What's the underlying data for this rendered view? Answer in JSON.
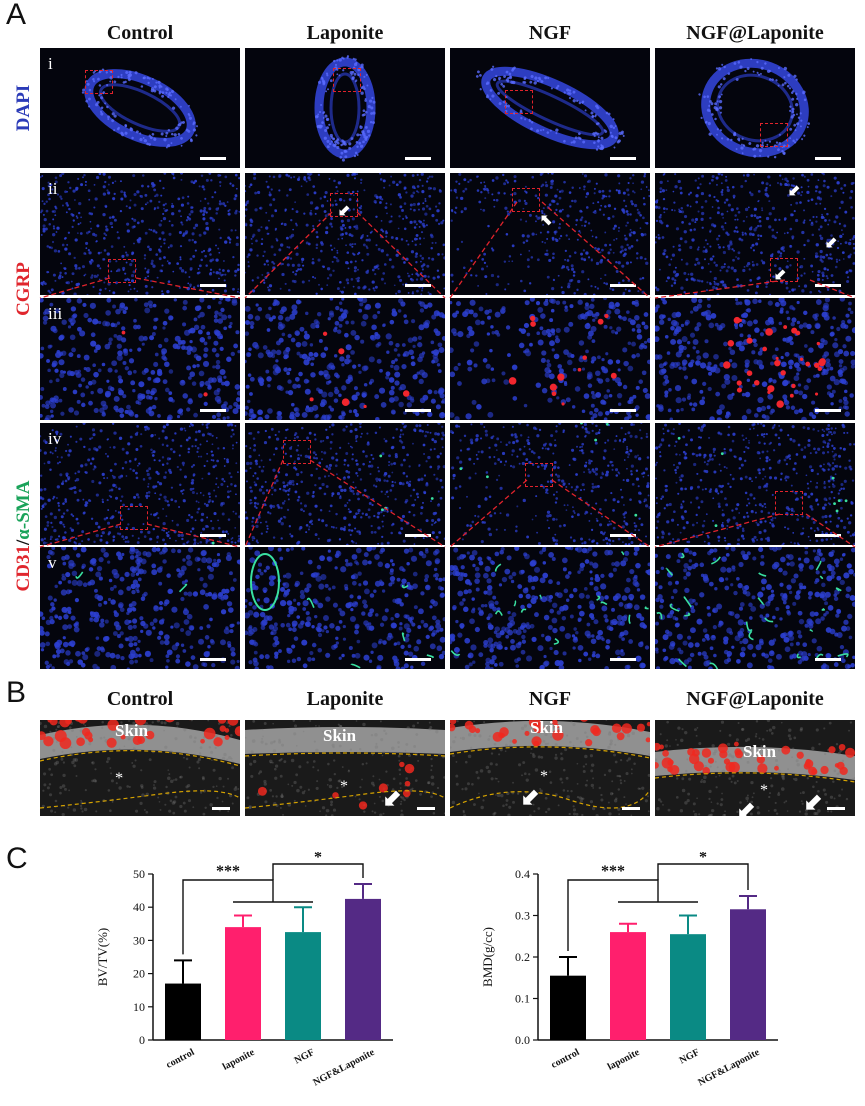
{
  "panels": {
    "a": "A",
    "b": "B",
    "c": "C"
  },
  "columns": [
    "Control",
    "Laponite",
    "NGF",
    "NGF@Laponite"
  ],
  "row_labels": {
    "dapi": "DAPI",
    "cgrp": "CGRP",
    "cd31": "CD31",
    "slash": "/",
    "asma": "α-SMA"
  },
  "row_numerals": [
    "i",
    "ii",
    "iii",
    "iv",
    "v"
  ],
  "panel_b": {
    "skin_label": "Skin",
    "asterisk": "*"
  },
  "colors": {
    "nuclei": "#2c3fd0",
    "cgrp": "#e5202a",
    "asma": "#2fd08a",
    "black_bar": "#000000",
    "pink_bar": "#ff1f6d",
    "teal_bar": "#0a8a84",
    "purple_bar": "#542a85"
  },
  "chart_data": [
    {
      "type": "bar",
      "categories": [
        "control",
        "laponite",
        "NGF",
        "NGF&Laponite"
      ],
      "values": [
        17,
        34,
        32.5,
        42.5
      ],
      "errors": [
        7,
        3.5,
        7.5,
        4.5
      ],
      "ylabel": "BV/TV(%)",
      "ylim": [
        0,
        50
      ],
      "yticks": [
        "0",
        "10",
        "20",
        "30",
        "40",
        "50"
      ],
      "significance": [
        "***",
        "*"
      ]
    },
    {
      "type": "bar",
      "categories": [
        "control",
        "laponite",
        "NGF",
        "NGF&Laponite"
      ],
      "values": [
        0.155,
        0.26,
        0.255,
        0.315
      ],
      "errors": [
        0.045,
        0.02,
        0.045,
        0.032
      ],
      "ylabel": "BMD(g/cc)",
      "ylim": [
        0,
        0.4
      ],
      "yticks": [
        "0.0",
        "0.1",
        "0.2",
        "0.3",
        "0.4"
      ],
      "significance": [
        "***",
        "*"
      ]
    }
  ]
}
